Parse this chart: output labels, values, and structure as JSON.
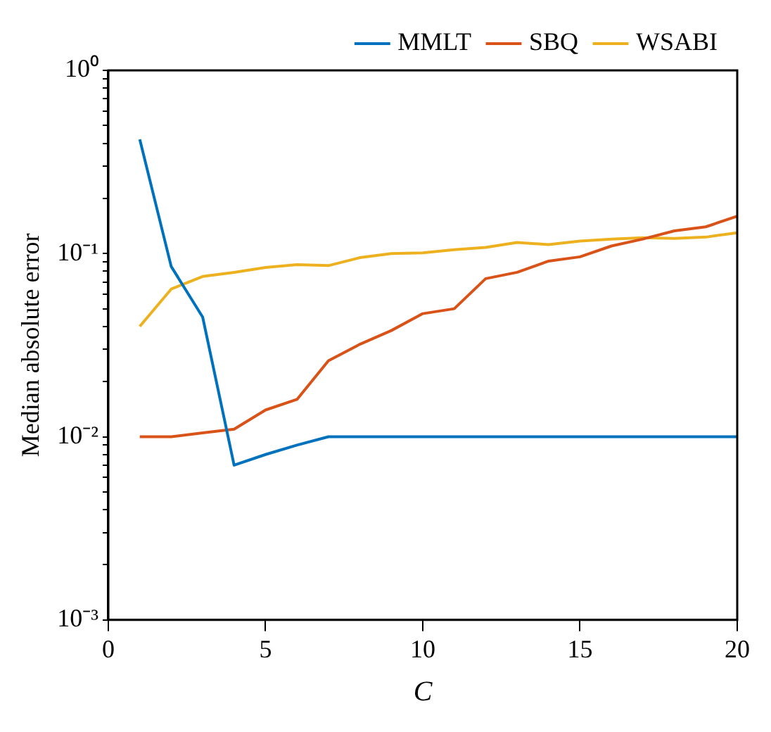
{
  "chart_data": {
    "type": "line",
    "xlabel": "C",
    "ylabel": "Median absolute error",
    "x": [
      1,
      2,
      3,
      4,
      5,
      6,
      7,
      8,
      9,
      10,
      11,
      12,
      13,
      14,
      15,
      16,
      17,
      18,
      19,
      20
    ],
    "series": [
      {
        "name": "MMLT",
        "color": "#0072bd",
        "values": [
          0.42,
          0.085,
          0.045,
          0.007,
          0.008,
          0.009,
          0.01,
          0.01,
          0.01,
          0.01,
          0.01,
          0.01,
          0.01,
          0.01,
          0.01,
          0.01,
          0.01,
          0.01,
          0.01,
          0.01
        ]
      },
      {
        "name": "SBQ",
        "color": "#d95319",
        "values": [
          0.01,
          0.01,
          0.0105,
          0.011,
          0.014,
          0.016,
          0.026,
          0.032,
          0.038,
          0.047,
          0.05,
          0.073,
          0.079,
          0.091,
          0.096,
          0.11,
          0.12,
          0.133,
          0.14,
          0.16
        ]
      },
      {
        "name": "WSABI",
        "color": "#edb120",
        "values": [
          0.04,
          0.064,
          0.075,
          0.079,
          0.084,
          0.087,
          0.086,
          0.095,
          0.1,
          0.101,
          0.105,
          0.108,
          0.115,
          0.112,
          0.117,
          0.12,
          0.122,
          0.121,
          0.123,
          0.13
        ]
      }
    ],
    "xlim": [
      0,
      20
    ],
    "xticks": [
      0,
      5,
      10,
      15,
      20
    ],
    "ylim": [
      0.001,
      1
    ],
    "log": "y",
    "yticks": [
      {
        "value": 0.001,
        "label": "10⁻³"
      },
      {
        "value": 0.002,
        "label": null
      },
      {
        "value": 0.003,
        "label": null
      },
      {
        "value": 0.004,
        "label": null
      },
      {
        "value": 0.005,
        "label": null
      },
      {
        "value": 0.006,
        "label": null
      },
      {
        "value": 0.007,
        "label": null
      },
      {
        "value": 0.008,
        "label": null
      },
      {
        "value": 0.009,
        "label": null
      },
      {
        "value": 0.01,
        "label": "10⁻²"
      },
      {
        "value": 0.02,
        "label": null
      },
      {
        "value": 0.03,
        "label": null
      },
      {
        "value": 0.04,
        "label": null
      },
      {
        "value": 0.05,
        "label": null
      },
      {
        "value": 0.06,
        "label": null
      },
      {
        "value": 0.07,
        "label": null
      },
      {
        "value": 0.08,
        "label": null
      },
      {
        "value": 0.09,
        "label": null
      },
      {
        "value": 0.1,
        "label": "10⁻¹"
      },
      {
        "value": 0.2,
        "label": null
      },
      {
        "value": 0.3,
        "label": null
      },
      {
        "value": 0.4,
        "label": null
      },
      {
        "value": 0.5,
        "label": null
      },
      {
        "value": 0.6,
        "label": null
      },
      {
        "value": 0.7,
        "label": null
      },
      {
        "value": 0.8,
        "label": null
      },
      {
        "value": 0.9,
        "label": null
      },
      {
        "value": 1,
        "label": "10⁰"
      }
    ],
    "grid": false,
    "legend": "top right",
    "marker": "none",
    "line_style": "solid"
  }
}
